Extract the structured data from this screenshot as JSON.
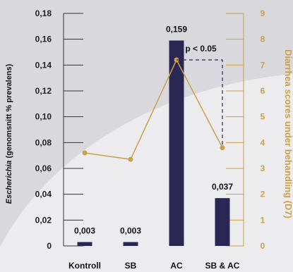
{
  "chart_data": {
    "type": "bar",
    "categories": [
      "Kontroll",
      "SB",
      "AC",
      "SB & AC"
    ],
    "series": [
      {
        "type": "bar",
        "axis": "left",
        "values": [
          0.003,
          0.003,
          0.159,
          0.037
        ],
        "data_labels": [
          "0,003",
          "0,003",
          "0,159",
          "0,037"
        ]
      },
      {
        "type": "line",
        "axis": "right",
        "values": [
          3.6,
          3.35,
          7.2,
          3.8
        ]
      }
    ],
    "ylabel_left_italic": "Escherichia",
    "ylabel_left_rest": " (genomsnitt % prevalens)",
    "ylabel_right": "Diarrhea scores under behandling (D7)",
    "ylim_left": [
      0,
      0.18
    ],
    "ylim_right": [
      0,
      9
    ],
    "left_ticks": [
      "0",
      "0,02",
      "0,04",
      "0,06",
      "0,08",
      "0,10",
      "0,12",
      "0,14",
      "0,16",
      "0,18"
    ],
    "right_ticks": [
      "0",
      "1",
      "2",
      "3",
      "4",
      "5",
      "6",
      "7",
      "8",
      "9"
    ],
    "annotation": {
      "text": "p < 0.05",
      "from_category": "AC",
      "to_category": "SB & AC"
    },
    "colors": {
      "bar": "#2a2754",
      "line": "#c9a04a",
      "right_axis": "#c9a04a",
      "left_axis": "#333333",
      "background": "#d8d8dd",
      "background_curve": "#ececef"
    }
  }
}
